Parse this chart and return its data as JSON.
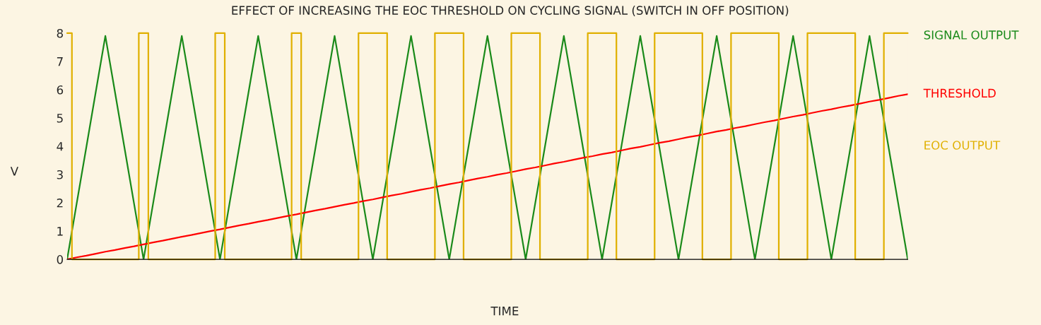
{
  "chart_data": {
    "type": "line",
    "title": "EFFECT OF INCREASING THE EOC THRESHOLD ON CYCLING SIGNAL (SWITCH IN OFF POSITION)",
    "xlabel": "TIME",
    "ylabel": "V",
    "categories": [
      null,
      null,
      null,
      null,
      null,
      null,
      null,
      null,
      null,
      null,
      null,
      null,
      null,
      null,
      null,
      null,
      null,
      null,
      null,
      null,
      null,
      null,
      null,
      null,
      null,
      null,
      null,
      null,
      null,
      null,
      null,
      null,
      null,
      null,
      null,
      null,
      null,
      null,
      null,
      null,
      null,
      null,
      null,
      null,
      null,
      null,
      null,
      null,
      null,
      null,
      null,
      null,
      null,
      null,
      null,
      null,
      null,
      null,
      null,
      null,
      null,
      null,
      null,
      null,
      null,
      null,
      null,
      null,
      null,
      null,
      null,
      null,
      null,
      null,
      null,
      null,
      null,
      null,
      null,
      null,
      null,
      null,
      null,
      null,
      null,
      null,
      null,
      null,
      null
    ],
    "ylim": [
      0,
      8
    ],
    "yticks": [
      0,
      1,
      2,
      3,
      4,
      5,
      6,
      7,
      8
    ],
    "tick_labels": "y",
    "grid": false,
    "legend": false,
    "series": [
      {
        "name": "SIGNAL OUTPUT",
        "color": "#1a8a1a",
        "values": [
          0,
          1.98,
          3.95,
          5.93,
          7.9,
          5.93,
          3.95,
          1.98,
          0,
          1.98,
          3.95,
          5.93,
          7.9,
          5.93,
          3.95,
          1.98,
          0,
          1.98,
          3.95,
          5.93,
          7.9,
          5.93,
          3.95,
          1.98,
          0,
          1.98,
          3.95,
          5.93,
          7.9,
          5.93,
          3.95,
          1.98,
          0,
          1.98,
          3.95,
          5.93,
          7.9,
          5.93,
          3.95,
          1.98,
          0,
          1.98,
          3.95,
          5.93,
          7.9,
          5.93,
          3.95,
          1.98,
          0,
          1.98,
          3.95,
          5.93,
          7.9,
          5.93,
          3.95,
          1.98,
          0,
          1.98,
          3.95,
          5.93,
          7.9,
          5.93,
          3.95,
          1.98,
          0,
          1.98,
          3.95,
          5.93,
          7.9,
          5.93,
          3.95,
          1.98,
          0,
          1.98,
          3.95,
          5.93,
          7.9,
          5.93,
          3.95,
          1.98,
          0,
          1.98,
          3.95,
          5.93,
          7.9,
          5.93,
          3.95,
          1.98,
          0
        ]
      },
      {
        "name": "THRESHOLD",
        "color": "#ff0000",
        "values": [
          0,
          0.07,
          0.13,
          0.2,
          0.27,
          0.33,
          0.4,
          0.46,
          0.53,
          0.6,
          0.66,
          0.73,
          0.8,
          0.86,
          0.93,
          1.0,
          1.06,
          1.13,
          1.2,
          1.26,
          1.33,
          1.39,
          1.46,
          1.53,
          1.59,
          1.66,
          1.73,
          1.79,
          1.86,
          1.93,
          1.99,
          2.06,
          2.12,
          2.19,
          2.26,
          2.32,
          2.39,
          2.46,
          2.52,
          2.59,
          2.66,
          2.72,
          2.79,
          2.86,
          2.92,
          2.99,
          3.05,
          3.12,
          3.19,
          3.25,
          3.32,
          3.39,
          3.45,
          3.52,
          3.59,
          3.65,
          3.72,
          3.78,
          3.85,
          3.92,
          3.98,
          4.05,
          4.12,
          4.18,
          4.25,
          4.32,
          4.38,
          4.45,
          4.52,
          4.58,
          4.65,
          4.71,
          4.78,
          4.85,
          4.91,
          4.98,
          5.05,
          5.11,
          5.18,
          5.25,
          5.31,
          5.38,
          5.44,
          5.51,
          5.58,
          5.64,
          5.71,
          5.78,
          5.84
        ]
      },
      {
        "name": "EOC OUTPUT",
        "type": "step",
        "color": "#e0b000",
        "values": [
          8,
          0,
          0,
          0,
          0,
          0,
          0,
          0,
          8,
          0,
          0,
          0,
          0,
          0,
          0,
          0,
          8,
          0,
          0,
          0,
          0,
          0,
          0,
          0,
          8,
          0,
          0,
          0,
          0,
          0,
          0,
          8,
          8,
          8,
          0,
          0,
          0,
          0,
          0,
          8,
          8,
          8,
          0,
          0,
          0,
          0,
          0,
          8,
          8,
          8,
          0,
          0,
          0,
          0,
          0,
          8,
          8,
          8,
          0,
          0,
          0,
          0,
          8,
          8,
          8,
          8,
          8,
          0,
          0,
          0,
          8,
          8,
          8,
          8,
          8,
          0,
          0,
          0,
          8,
          8,
          8,
          8,
          8,
          0,
          0,
          0,
          8,
          8,
          8
        ]
      }
    ]
  }
}
